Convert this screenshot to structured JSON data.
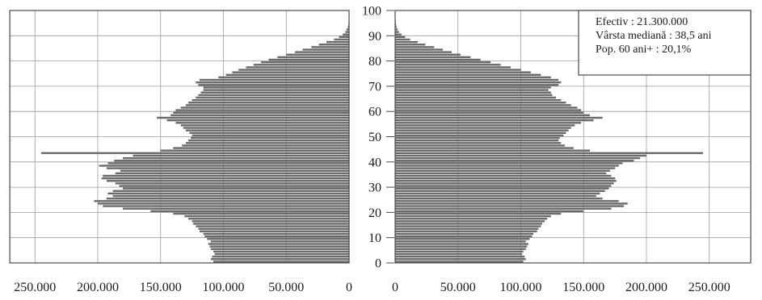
{
  "chart_data": {
    "type": "bar",
    "orientation": "horizontal",
    "mirrored": true,
    "categories": [
      0,
      1,
      2,
      3,
      4,
      5,
      6,
      7,
      8,
      9,
      10,
      11,
      12,
      13,
      14,
      15,
      16,
      17,
      18,
      19,
      20,
      21,
      22,
      23,
      24,
      25,
      26,
      27,
      28,
      29,
      30,
      31,
      32,
      33,
      34,
      35,
      36,
      37,
      38,
      39,
      40,
      41,
      42,
      43,
      44,
      45,
      46,
      47,
      48,
      49,
      50,
      51,
      52,
      53,
      54,
      55,
      56,
      57,
      58,
      59,
      60,
      61,
      62,
      63,
      64,
      65,
      66,
      67,
      68,
      69,
      70,
      71,
      72,
      73,
      74,
      75,
      76,
      77,
      78,
      79,
      80,
      81,
      82,
      83,
      84,
      85,
      86,
      87,
      88,
      89,
      90,
      91,
      92,
      93,
      94,
      95
    ],
    "series": [
      {
        "side": "left",
        "color": "#6b6b6b",
        "values": [
          108000,
          110000,
          109000,
          107000,
          108000,
          110000,
          111000,
          112000,
          110000,
          113000,
          115000,
          116000,
          119000,
          120000,
          122000,
          124000,
          125000,
          128000,
          131000,
          140000,
          158000,
          180000,
          196000,
          200000,
          203000,
          193000,
          188000,
          192000,
          188000,
          180000,
          183000,
          186000,
          193000,
          197000,
          196000,
          186000,
          182000,
          193000,
          199000,
          192000,
          187000,
          180000,
          172000,
          245000,
          150000,
          140000,
          133000,
          130000,
          128000,
          126000,
          125000,
          127000,
          130000,
          132000,
          134000,
          138000,
          145000,
          153000,
          142000,
          140000,
          138000,
          134000,
          130000,
          128000,
          125000,
          122000,
          120000,
          118000,
          116000,
          116000,
          120000,
          122000,
          119000,
          104000,
          98000,
          93000,
          88000,
          82000,
          76000,
          70000,
          64000,
          57000,
          50000,
          43000,
          37000,
          30000,
          24000,
          18000,
          12000,
          8000,
          5000,
          3000,
          2000,
          1000,
          600,
          400
        ]
      },
      {
        "side": "right",
        "color": "#6b6b6b",
        "values": [
          102000,
          104000,
          103000,
          101000,
          102000,
          104000,
          105000,
          106000,
          104000,
          107000,
          109000,
          110000,
          113000,
          114000,
          116000,
          117000,
          119000,
          121000,
          124000,
          132000,
          150000,
          172000,
          182000,
          185000,
          178000,
          165000,
          160000,
          163000,
          167000,
          170000,
          172000,
          174000,
          176000,
          175000,
          172000,
          168000,
          171000,
          175000,
          178000,
          181000,
          190000,
          195000,
          200000,
          245000,
          155000,
          142000,
          135000,
          132000,
          130000,
          131000,
          134000,
          136000,
          138000,
          140000,
          143000,
          148000,
          158000,
          165000,
          155000,
          150000,
          148000,
          145000,
          140000,
          136000,
          132000,
          128000,
          125000,
          124000,
          122000,
          124000,
          130000,
          132000,
          130000,
          124000,
          116000,
          108000,
          100000,
          92000,
          84000,
          76000,
          68000,
          60000,
          52000,
          45000,
          38000,
          31000,
          24000,
          18000,
          12000,
          8000,
          5000,
          3000,
          2000,
          1200,
          800,
          500
        ]
      }
    ],
    "x_ticks": [
      {
        "value": 0,
        "label": "0"
      },
      {
        "value": 50000,
        "label": "50.000"
      },
      {
        "value": 100000,
        "label": "100.000"
      },
      {
        "value": 150000,
        "label": "150.000"
      },
      {
        "value": 200000,
        "label": "200.000"
      },
      {
        "value": 250000,
        "label": "250.000"
      }
    ],
    "y_ticks": [
      0,
      10,
      20,
      30,
      40,
      50,
      60,
      70,
      80,
      90,
      100
    ],
    "xlim": {
      "left": [
        0,
        270000
      ],
      "right": [
        0,
        283000
      ]
    },
    "ylim": [
      0,
      100
    ],
    "grid": true,
    "annotation_placement": "top-right",
    "annotations": [
      "Efectiv : 21.300.000",
      "Vârsta mediană : 38,5 ani",
      "Pop. 60 ani+ : 20,1%"
    ]
  }
}
